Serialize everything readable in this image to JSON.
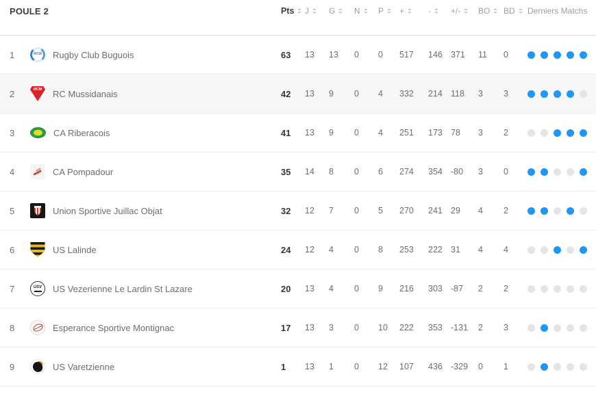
{
  "header": {
    "title": "POULE 2",
    "columns": [
      {
        "key": "pts",
        "label": "Pts",
        "sortable": true,
        "emphasis": true
      },
      {
        "key": "j",
        "label": "J",
        "sortable": true,
        "emphasis": false
      },
      {
        "key": "g",
        "label": "G",
        "sortable": true,
        "emphasis": false
      },
      {
        "key": "n",
        "label": "N",
        "sortable": true,
        "emphasis": false
      },
      {
        "key": "p",
        "label": "P",
        "sortable": true,
        "emphasis": false
      },
      {
        "key": "plus",
        "label": "+",
        "sortable": true,
        "emphasis": false
      },
      {
        "key": "minus",
        "label": "-",
        "sortable": true,
        "emphasis": false
      },
      {
        "key": "diff",
        "label": "+/-",
        "sortable": true,
        "emphasis": false
      },
      {
        "key": "bo",
        "label": "BO",
        "sortable": true,
        "emphasis": false
      },
      {
        "key": "bd",
        "label": "BD",
        "sortable": true,
        "emphasis": false
      },
      {
        "key": "derniers",
        "label": "Derniers Matchs",
        "sortable": false,
        "emphasis": false
      }
    ]
  },
  "colors": {
    "dot_win": "#2196f3",
    "dot_loss": "#e5e5e5",
    "row_highlight": "#f7f7f7"
  },
  "table": {
    "rows": [
      {
        "rank": 1,
        "team": "Rugby Club Buguois",
        "logo": "rcb",
        "logo_text": "RCB",
        "highlighted": false,
        "pts": 63,
        "j": 13,
        "g": 13,
        "n": 0,
        "p": 0,
        "plus": 517,
        "minus": 146,
        "diff": 371,
        "bo": 11,
        "bd": 0,
        "derniers": [
          "W",
          "W",
          "W",
          "W",
          "W"
        ]
      },
      {
        "rank": 2,
        "team": "RC Mussidanais",
        "logo": "rcm",
        "logo_text": "RCM",
        "highlighted": true,
        "pts": 42,
        "j": 13,
        "g": 9,
        "n": 0,
        "p": 4,
        "plus": 332,
        "minus": 214,
        "diff": 118,
        "bo": 3,
        "bd": 3,
        "derniers": [
          "W",
          "W",
          "W",
          "W",
          "L"
        ]
      },
      {
        "rank": 3,
        "team": "CA Riberacois",
        "logo": "car",
        "logo_text": "",
        "highlighted": false,
        "pts": 41,
        "j": 13,
        "g": 9,
        "n": 0,
        "p": 4,
        "plus": 251,
        "minus": 173,
        "diff": 78,
        "bo": 3,
        "bd": 2,
        "derniers": [
          "L",
          "L",
          "W",
          "W",
          "W"
        ]
      },
      {
        "rank": 4,
        "team": "CA Pompadour",
        "logo": "cap",
        "logo_text": "",
        "highlighted": false,
        "pts": 35,
        "j": 14,
        "g": 8,
        "n": 0,
        "p": 6,
        "plus": 274,
        "minus": 354,
        "diff": -80,
        "bo": 3,
        "bd": 0,
        "derniers": [
          "W",
          "W",
          "L",
          "L",
          "W"
        ]
      },
      {
        "rank": 5,
        "team": "Union Sportive Juillac Objat",
        "logo": "usjo",
        "logo_text": "",
        "highlighted": false,
        "pts": 32,
        "j": 12,
        "g": 7,
        "n": 0,
        "p": 5,
        "plus": 270,
        "minus": 241,
        "diff": 29,
        "bo": 4,
        "bd": 2,
        "derniers": [
          "W",
          "W",
          "L",
          "W",
          "L"
        ]
      },
      {
        "rank": 6,
        "team": "US Lalinde",
        "logo": "usl",
        "logo_text": "",
        "highlighted": false,
        "pts": 24,
        "j": 12,
        "g": 4,
        "n": 0,
        "p": 8,
        "plus": 253,
        "minus": 222,
        "diff": 31,
        "bo": 4,
        "bd": 4,
        "derniers": [
          "L",
          "L",
          "W",
          "L",
          "W"
        ]
      },
      {
        "rank": 7,
        "team": "US Vezerienne Le Lardin St Lazare",
        "logo": "usv",
        "logo_text": "USV",
        "highlighted": false,
        "pts": 20,
        "j": 13,
        "g": 4,
        "n": 0,
        "p": 9,
        "plus": 216,
        "minus": 303,
        "diff": -87,
        "bo": 2,
        "bd": 2,
        "derniers": [
          "L",
          "L",
          "L",
          "L",
          "L"
        ]
      },
      {
        "rank": 8,
        "team": "Esperance Sportive Montignac",
        "logo": "esm",
        "logo_text": "",
        "highlighted": false,
        "pts": 17,
        "j": 13,
        "g": 3,
        "n": 0,
        "p": 10,
        "plus": 222,
        "minus": 353,
        "diff": -131,
        "bo": 2,
        "bd": 3,
        "derniers": [
          "L",
          "W",
          "L",
          "L",
          "L"
        ]
      },
      {
        "rank": 9,
        "team": "US Varetzienne",
        "logo": "usvz",
        "logo_text": "",
        "highlighted": false,
        "pts": 1,
        "j": 13,
        "g": 1,
        "n": 0,
        "p": 12,
        "plus": 107,
        "minus": 436,
        "diff": -329,
        "bo": 0,
        "bd": 1,
        "derniers": [
          "L",
          "W",
          "L",
          "L",
          "L"
        ]
      }
    ]
  }
}
